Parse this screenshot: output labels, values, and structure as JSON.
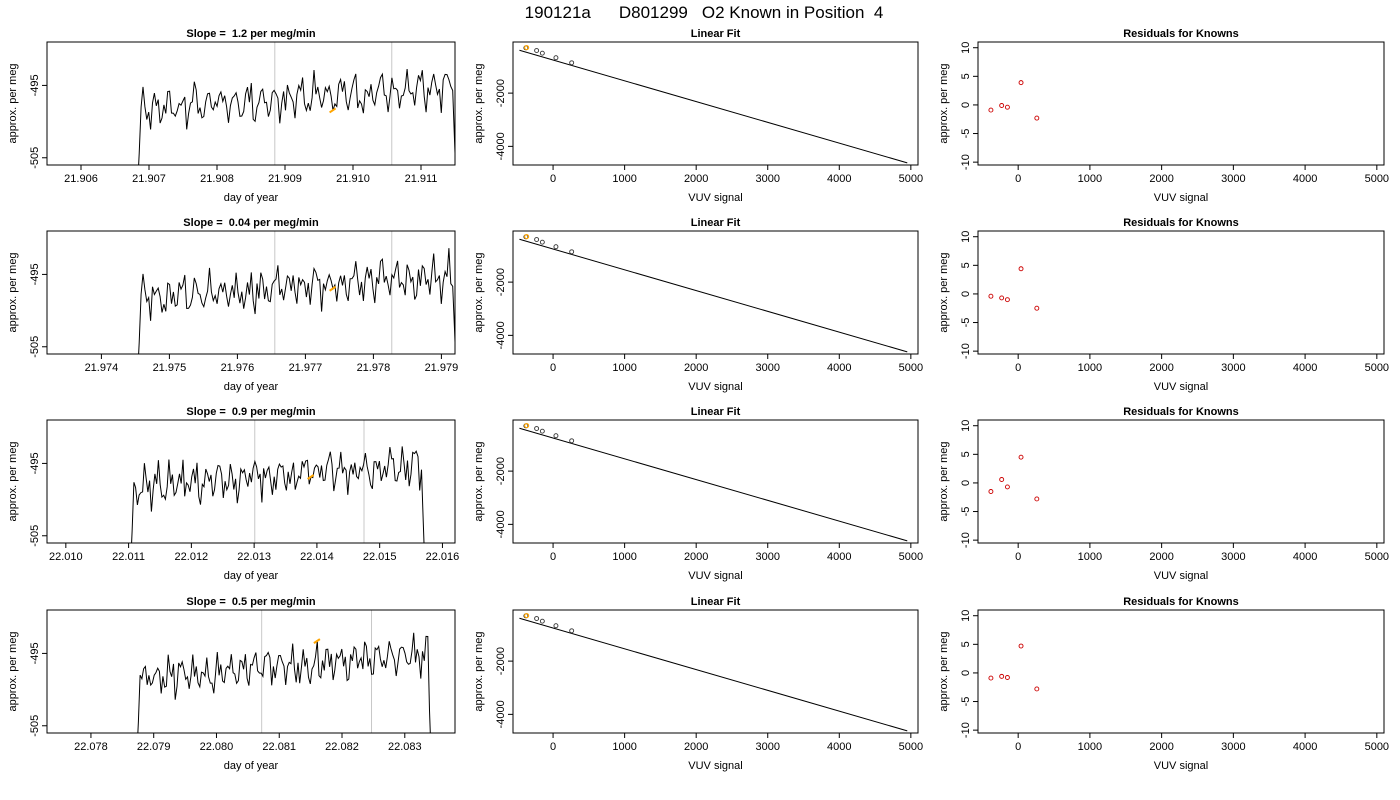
{
  "figure": {
    "run_id": "190121a",
    "tank_id": "D801299",
    "description": "O2 Known in Position  4"
  },
  "colors": {
    "line": "#000000",
    "refline": "#c8c8c8",
    "highlight": "#ffa500",
    "residual": "#cc0000",
    "fitpoint": "#333333"
  },
  "chart_data": [
    {
      "type": "line",
      "row": 0,
      "col": 0,
      "title_prefix": "Slope = ",
      "slope": "1.2",
      "title_suffix": " per meg/min",
      "xlabel": "day of year",
      "ylabel": "approx. per meg",
      "xlim": [
        21.9055,
        21.9115
      ],
      "ylim": [
        -506,
        -489
      ],
      "xticks": [
        21.906,
        21.907,
        21.908,
        21.909,
        21.91,
        21.911
      ],
      "xtick_labels": [
        "21.906",
        "21.907",
        "21.908",
        "21.909",
        "21.910",
        "21.911"
      ],
      "yticks": [
        -505,
        -495
      ],
      "ytick_labels": [
        "-505",
        "-495"
      ],
      "x_start": 21.9068,
      "x_end": 21.91155,
      "seed": 11,
      "vlines": [
        21.90885,
        21.91057
      ],
      "highlight_x": 21.9097
    },
    {
      "type": "scatter",
      "row": 0,
      "col": 1,
      "title": "Linear Fit",
      "xlabel": "VUV signal",
      "ylabel": "approx. per meg",
      "xlim": [
        -560,
        5100
      ],
      "ylim": [
        -4700,
        -80
      ],
      "xticks": [
        0,
        1000,
        2000,
        3000,
        4000,
        5000
      ],
      "xtick_labels": [
        "0",
        "1000",
        "2000",
        "3000",
        "4000",
        "5000"
      ],
      "yticks": [
        -4000,
        -2000
      ],
      "ytick_labels": [
        "-4000",
        "-2000"
      ],
      "fit_line": [
        [
          -470,
          -390
        ],
        [
          4950,
          -4620
        ]
      ],
      "x": [
        -380,
        -230,
        -150,
        40,
        260
      ],
      "y": [
        -300,
        -400,
        -500,
        -670,
        -860
      ],
      "highlight_point": [
        -370,
        -290
      ]
    },
    {
      "type": "scatter",
      "row": 0,
      "col": 2,
      "title": "Residuals for Knowns",
      "xlabel": "VUV signal",
      "ylabel": "approx. per meg",
      "xlim": [
        -560,
        5100
      ],
      "ylim": [
        -10.5,
        11
      ],
      "xticks": [
        0,
        1000,
        2000,
        3000,
        4000,
        5000
      ],
      "xtick_labels": [
        "0",
        "1000",
        "2000",
        "3000",
        "4000",
        "5000"
      ],
      "yticks": [
        -10,
        -5,
        0,
        5,
        10
      ],
      "ytick_labels": [
        "-10",
        "-5",
        "0",
        "5",
        "10"
      ],
      "x": [
        -380,
        -230,
        -150,
        40,
        260
      ],
      "y": [
        -0.9,
        -0.1,
        -0.4,
        3.9,
        -2.3
      ]
    },
    {
      "type": "line",
      "row": 1,
      "col": 0,
      "title_prefix": "Slope = ",
      "slope": "0.04",
      "title_suffix": " per meg/min",
      "xlabel": "day of year",
      "ylabel": "approx. per meg",
      "xlim": [
        21.9732,
        21.9792
      ],
      "ylim": [
        -506,
        -489
      ],
      "xticks": [
        21.974,
        21.975,
        21.976,
        21.977,
        21.978,
        21.979
      ],
      "xtick_labels": [
        "21.974",
        "21.975",
        "21.976",
        "21.977",
        "21.978",
        "21.979"
      ],
      "yticks": [
        -505,
        -495
      ],
      "ytick_labels": [
        "-505",
        "-495"
      ],
      "x_start": 21.9745,
      "x_end": 21.97925,
      "seed": 23,
      "vlines": [
        21.97655,
        21.97827
      ],
      "highlight_x": 21.9774
    },
    {
      "type": "scatter",
      "row": 1,
      "col": 1,
      "title": "Linear Fit",
      "xlabel": "VUV signal",
      "ylabel": "approx. per meg",
      "xlim": [
        -560,
        5100
      ],
      "ylim": [
        -4700,
        -80
      ],
      "xticks": [
        0,
        1000,
        2000,
        3000,
        4000,
        5000
      ],
      "xtick_labels": [
        "0",
        "1000",
        "2000",
        "3000",
        "4000",
        "5000"
      ],
      "yticks": [
        -4000,
        -2000
      ],
      "ytick_labels": [
        "-4000",
        "-2000"
      ],
      "fit_line": [
        [
          -470,
          -390
        ],
        [
          4950,
          -4620
        ]
      ],
      "x": [
        -380,
        -230,
        -150,
        40,
        260
      ],
      "y": [
        -300,
        -400,
        -500,
        -670,
        -860
      ],
      "highlight_point": [
        -370,
        -290
      ]
    },
    {
      "type": "scatter",
      "row": 1,
      "col": 2,
      "title": "Residuals for Knowns",
      "xlabel": "VUV signal",
      "ylabel": "approx. per meg",
      "xlim": [
        -560,
        5100
      ],
      "ylim": [
        -10.5,
        11
      ],
      "xticks": [
        0,
        1000,
        2000,
        3000,
        4000,
        5000
      ],
      "xtick_labels": [
        "0",
        "1000",
        "2000",
        "3000",
        "4000",
        "5000"
      ],
      "yticks": [
        -10,
        -5,
        0,
        5,
        10
      ],
      "ytick_labels": [
        "-10",
        "-5",
        "0",
        "5",
        "10"
      ],
      "x": [
        -380,
        -230,
        -150,
        40,
        260
      ],
      "y": [
        -0.4,
        -0.7,
        -1.0,
        4.4,
        -2.5
      ]
    },
    {
      "type": "line",
      "row": 2,
      "col": 0,
      "title_prefix": "Slope = ",
      "slope": "0.9",
      "title_suffix": " per meg/min",
      "xlabel": "day of year",
      "ylabel": "approx. per meg",
      "xlim": [
        22.0097,
        22.0162
      ],
      "ylim": [
        -506,
        -489
      ],
      "xticks": [
        22.01,
        22.011,
        22.012,
        22.013,
        22.014,
        22.015,
        22.016
      ],
      "xtick_labels": [
        "22.010",
        "22.011",
        "22.012",
        "22.013",
        "22.014",
        "22.015",
        "22.016"
      ],
      "yticks": [
        -505,
        -495
      ],
      "ytick_labels": [
        "-505",
        "-495"
      ],
      "x_start": 22.011,
      "x_end": 22.01575,
      "seed": 37,
      "vlines": [
        22.01301,
        22.01475
      ],
      "highlight_x": 22.0139
    },
    {
      "type": "scatter",
      "row": 2,
      "col": 1,
      "title": "Linear Fit",
      "xlabel": "VUV signal",
      "ylabel": "approx. per meg",
      "xlim": [
        -560,
        5100
      ],
      "ylim": [
        -4700,
        -80
      ],
      "xticks": [
        0,
        1000,
        2000,
        3000,
        4000,
        5000
      ],
      "xtick_labels": [
        "0",
        "1000",
        "2000",
        "3000",
        "4000",
        "5000"
      ],
      "yticks": [
        -4000,
        -2000
      ],
      "ytick_labels": [
        "-4000",
        "-2000"
      ],
      "fit_line": [
        [
          -470,
          -390
        ],
        [
          4950,
          -4620
        ]
      ],
      "x": [
        -380,
        -230,
        -150,
        40,
        260
      ],
      "y": [
        -300,
        -400,
        -500,
        -670,
        -860
      ],
      "highlight_point": [
        -370,
        -290
      ]
    },
    {
      "type": "scatter",
      "row": 2,
      "col": 2,
      "title": "Residuals for Knowns",
      "xlabel": "VUV signal",
      "ylabel": "approx. per meg",
      "xlim": [
        -560,
        5100
      ],
      "ylim": [
        -10.5,
        11
      ],
      "xticks": [
        0,
        1000,
        2000,
        3000,
        4000,
        5000
      ],
      "xtick_labels": [
        "0",
        "1000",
        "2000",
        "3000",
        "4000",
        "5000"
      ],
      "yticks": [
        -10,
        -5,
        0,
        5,
        10
      ],
      "ytick_labels": [
        "-10",
        "-5",
        "0",
        "5",
        "10"
      ],
      "x": [
        -380,
        -230,
        -150,
        40,
        260
      ],
      "y": [
        -1.5,
        0.6,
        -0.7,
        4.5,
        -2.8
      ]
    },
    {
      "type": "line",
      "row": 3,
      "col": 0,
      "title_prefix": "Slope = ",
      "slope": "0.5",
      "title_suffix": " per meg/min",
      "xlabel": "day of year",
      "ylabel": "approx. per meg",
      "xlim": [
        22.0773,
        22.0838
      ],
      "ylim": [
        -506,
        -489
      ],
      "xticks": [
        22.078,
        22.079,
        22.08,
        22.081,
        22.082,
        22.083
      ],
      "xtick_labels": [
        "22.078",
        "22.079",
        "22.080",
        "22.081",
        "22.082",
        "22.083"
      ],
      "yticks": [
        -505,
        -495
      ],
      "ytick_labels": [
        "-505",
        "-495"
      ],
      "x_start": 22.0787,
      "x_end": 22.08345,
      "seed": 53,
      "vlines": [
        22.08072,
        22.08247
      ],
      "highlight_x": 22.0816
    },
    {
      "type": "scatter",
      "row": 3,
      "col": 1,
      "title": "Linear Fit",
      "xlabel": "VUV signal",
      "ylabel": "approx. per meg",
      "xlim": [
        -560,
        5100
      ],
      "ylim": [
        -4700,
        -80
      ],
      "xticks": [
        0,
        1000,
        2000,
        3000,
        4000,
        5000
      ],
      "xtick_labels": [
        "0",
        "1000",
        "2000",
        "3000",
        "4000",
        "5000"
      ],
      "yticks": [
        -4000,
        -2000
      ],
      "ytick_labels": [
        "-4000",
        "-2000"
      ],
      "fit_line": [
        [
          -470,
          -390
        ],
        [
          4950,
          -4620
        ]
      ],
      "x": [
        -380,
        -230,
        -150,
        40,
        260
      ],
      "y": [
        -300,
        -400,
        -500,
        -670,
        -860
      ],
      "highlight_point": [
        -370,
        -290
      ]
    },
    {
      "type": "scatter",
      "row": 3,
      "col": 2,
      "title": "Residuals for Knowns",
      "xlabel": "VUV signal",
      "ylabel": "approx. per meg",
      "xlim": [
        -560,
        5100
      ],
      "ylim": [
        -10.5,
        11
      ],
      "xticks": [
        0,
        1000,
        2000,
        3000,
        4000,
        5000
      ],
      "xtick_labels": [
        "0",
        "1000",
        "2000",
        "3000",
        "4000",
        "5000"
      ],
      "yticks": [
        -10,
        -5,
        0,
        5,
        10
      ],
      "ytick_labels": [
        "-10",
        "-5",
        "0",
        "5",
        "10"
      ],
      "x": [
        -380,
        -230,
        -150,
        40,
        260
      ],
      "y": [
        -0.9,
        -0.6,
        -0.8,
        4.7,
        -2.8
      ]
    }
  ]
}
